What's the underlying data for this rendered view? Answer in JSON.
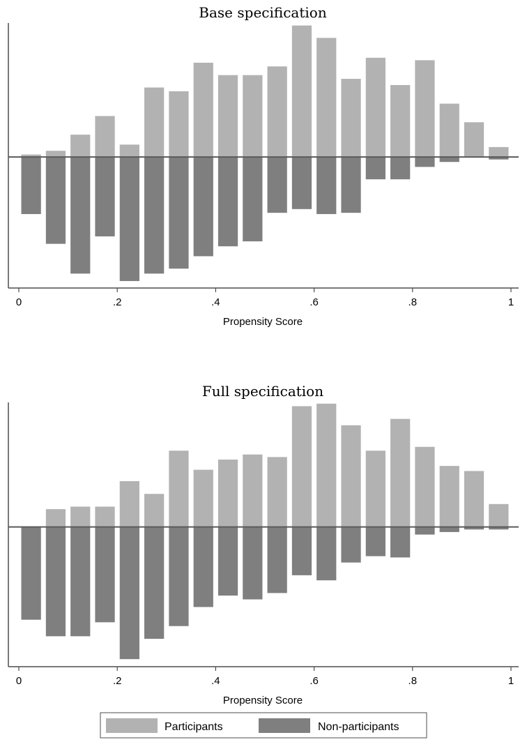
{
  "colors": {
    "participants": "#b2b2b2",
    "non_participants": "#7f7f7f",
    "axis": "#4d4d4d",
    "baseline": "#5a5a5a"
  },
  "chart_data": [
    {
      "type": "bar",
      "title": "Base specification",
      "xlabel": "Propensity Score",
      "ylabel": "",
      "xlim": [
        0,
        1
      ],
      "ylim": [
        -10,
        10.8
      ],
      "tick_values": [
        0,
        0.2,
        0.4,
        0.6,
        0.8,
        1
      ],
      "tick_labels": [
        "0",
        ".2",
        ".4",
        ".6",
        ".8",
        "1"
      ],
      "bin_centers": [
        0.025,
        0.075,
        0.125,
        0.175,
        0.225,
        0.275,
        0.325,
        0.375,
        0.425,
        0.475,
        0.525,
        0.575,
        0.625,
        0.675,
        0.725,
        0.775,
        0.825,
        0.875,
        0.925,
        0.975
      ],
      "series": [
        {
          "name": "Participants",
          "values": [
            0.2,
            0.5,
            1.8,
            3.3,
            1.0,
            5.6,
            5.3,
            7.6,
            6.6,
            6.6,
            7.3,
            10.6,
            9.6,
            6.3,
            8.0,
            5.8,
            7.8,
            4.3,
            2.8,
            0.8
          ]
        },
        {
          "name": "Non-participants",
          "values": [
            -4.6,
            -7.0,
            -9.4,
            -6.4,
            -10.0,
            -9.4,
            -9.0,
            -8.0,
            -7.2,
            -6.8,
            -4.5,
            -4.2,
            -4.6,
            -4.5,
            -1.8,
            -1.8,
            -0.8,
            -0.4,
            0.0,
            -0.2
          ]
        }
      ]
    },
    {
      "type": "bar",
      "title": "Full specification",
      "xlabel": "Propensity Score",
      "ylabel": "",
      "xlim": [
        0,
        1
      ],
      "ylim": [
        -10.5,
        9.8
      ],
      "tick_values": [
        0,
        0.2,
        0.4,
        0.6,
        0.8,
        1
      ],
      "tick_labels": [
        "0",
        ".2",
        ".4",
        ".6",
        ".8",
        "1"
      ],
      "bin_centers": [
        0.025,
        0.075,
        0.125,
        0.175,
        0.225,
        0.275,
        0.325,
        0.375,
        0.425,
        0.475,
        0.525,
        0.575,
        0.625,
        0.675,
        0.725,
        0.775,
        0.825,
        0.875,
        0.925,
        0.975
      ],
      "series": [
        {
          "name": "Participants",
          "values": [
            0.0,
            1.4,
            1.6,
            1.6,
            3.6,
            2.6,
            6.0,
            4.5,
            5.3,
            5.7,
            5.5,
            9.5,
            9.7,
            8.0,
            6.0,
            8.5,
            6.3,
            4.8,
            4.4,
            1.8
          ]
        },
        {
          "name": "Non-participants",
          "values": [
            -7.3,
            -8.6,
            -8.6,
            -7.5,
            -10.4,
            -8.8,
            -7.8,
            -6.3,
            -5.4,
            -5.7,
            -5.2,
            -3.8,
            -4.2,
            -2.8,
            -2.3,
            -2.4,
            -0.6,
            -0.4,
            -0.2,
            -0.2
          ]
        }
      ]
    }
  ],
  "legend": {
    "items": [
      {
        "label": "Participants",
        "color": "#b2b2b2"
      },
      {
        "label": "Non-participants",
        "color": "#7f7f7f"
      }
    ]
  }
}
